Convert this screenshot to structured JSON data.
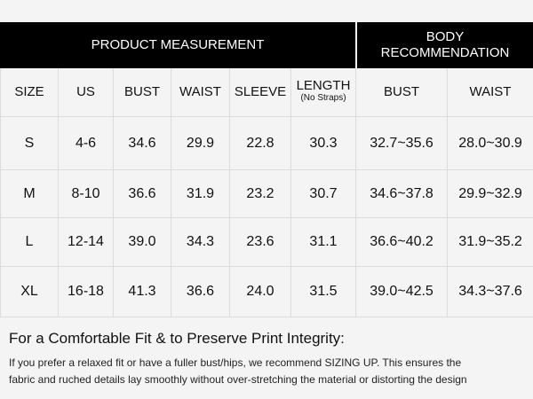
{
  "header": {
    "measurement_title": "PRODUCT MEASUREMENT",
    "recommendation_title": [
      "BODY",
      "RECOMMENDATION"
    ]
  },
  "table": {
    "columns": [
      "SIZE",
      "US",
      "BUST",
      "WAIST",
      "SLEEVE",
      "LENGTH",
      "BUST",
      "WAIST"
    ],
    "length_note": "(No Straps)",
    "rows": [
      [
        "S",
        "4-6",
        "34.6",
        "29.9",
        "22.8",
        "30.3",
        "32.7~35.6",
        "28.0~30.9"
      ],
      [
        "M",
        "8-10",
        "36.6",
        "31.9",
        "23.2",
        "30.7",
        "34.6~37.8",
        "29.9~32.9"
      ],
      [
        "L",
        "12-14",
        "39.0",
        "34.3",
        "23.6",
        "31.1",
        "36.6~40.2",
        "31.9~35.2"
      ],
      [
        "XL",
        "16-18",
        "41.3",
        "36.6",
        "24.0",
        "31.5",
        "39.0~42.5",
        "34.3~37.6"
      ]
    ]
  },
  "footer": {
    "heading": "For a Comfortable Fit & to Preserve Print Integrity:",
    "lines": [
      "If you prefer a relaxed fit or have a fuller bust/hips, we recommend SIZING UP. This ensures the",
      "fabric and ruched details lay smoothly without over-stretching the material or distorting the design"
    ]
  }
}
